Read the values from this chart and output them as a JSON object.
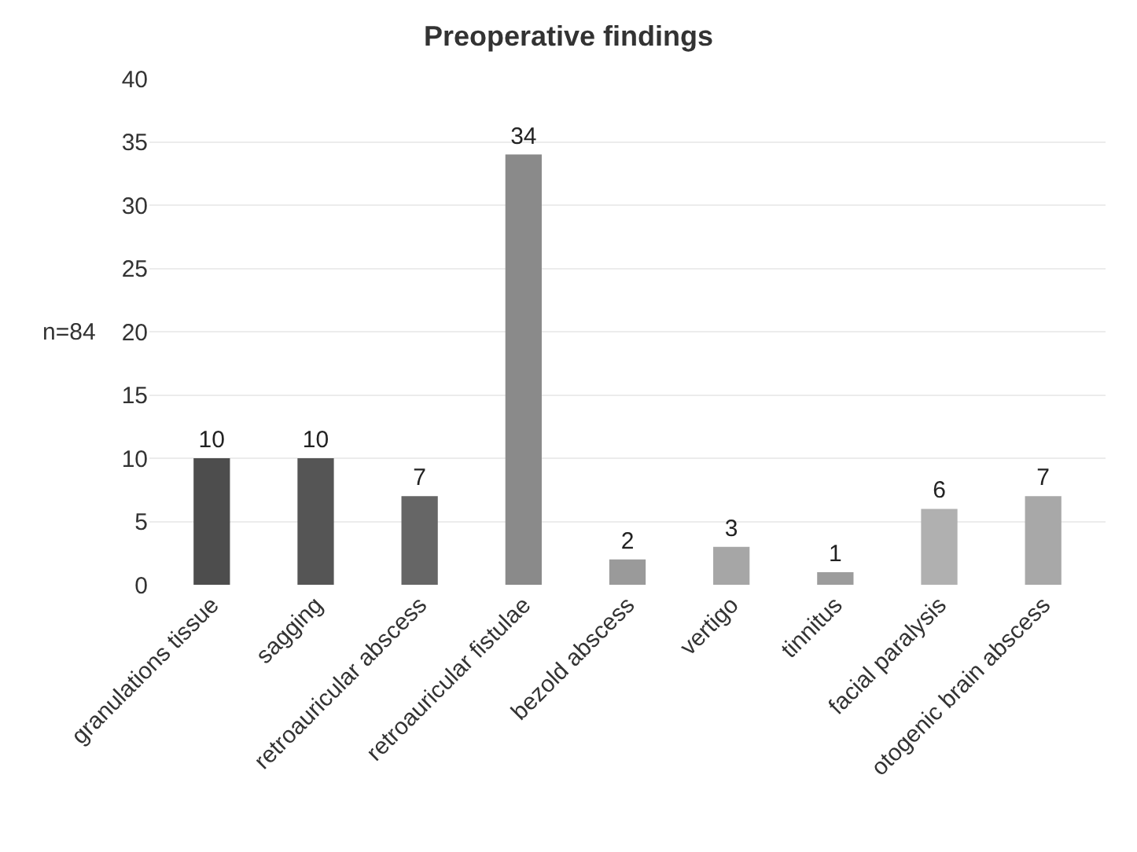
{
  "chart_data": {
    "type": "bar",
    "title": "Preoperative findings",
    "ylabel": "n=84",
    "categories": [
      "granulations tissue",
      "sagging",
      "retroauricular abscess",
      "retroauricular fistulae",
      "bezold abscess",
      "vertigo",
      "tinnitus",
      "facial paralysis",
      "otogenic brain abscess"
    ],
    "values": [
      10,
      10,
      7,
      34,
      2,
      3,
      1,
      6,
      7
    ],
    "colors": [
      "#4d4d4d",
      "#555555",
      "#666666",
      "#8a8a8a",
      "#9a9a9a",
      "#a6a6a6",
      "#9c9c9c",
      "#b0b0b0",
      "#a8a8a8"
    ],
    "ylim": [
      0,
      40
    ],
    "yticks": [
      0,
      5,
      10,
      15,
      20,
      25,
      30,
      35,
      40
    ],
    "grid": "y",
    "data_labels": true,
    "legend": false
  }
}
